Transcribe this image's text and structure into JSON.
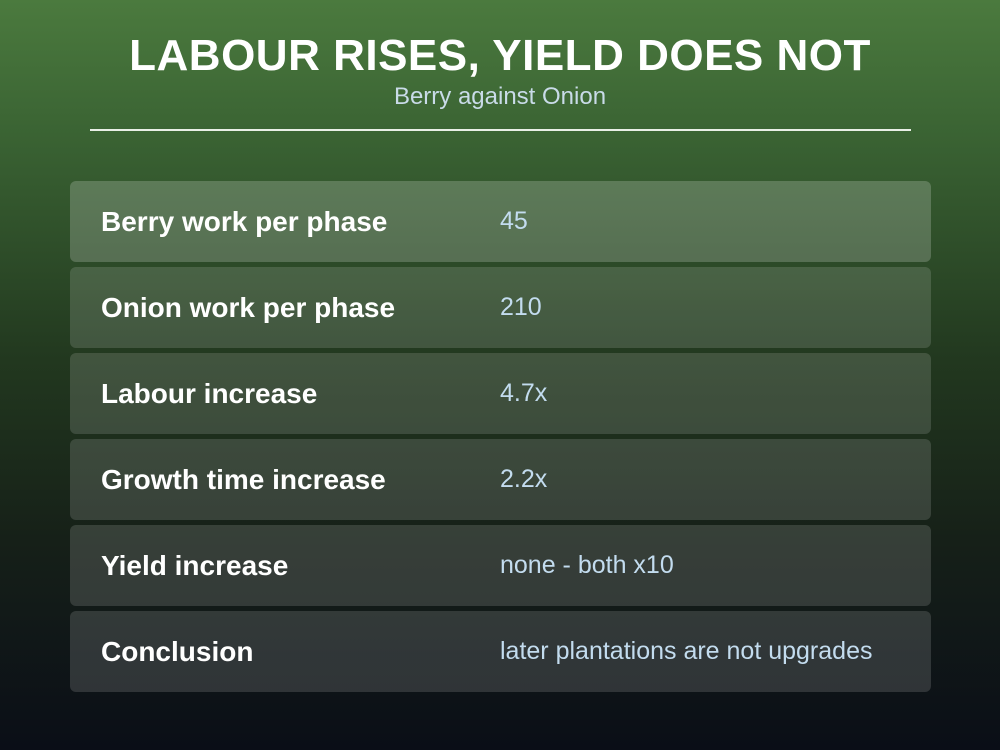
{
  "header": {
    "title": "LABOUR RISES, YIELD DOES NOT",
    "subtitle": "Berry against Onion"
  },
  "rows": [
    {
      "label": "Berry work per phase",
      "value": "45"
    },
    {
      "label": "Onion work per phase",
      "value": "210"
    },
    {
      "label": "Labour increase",
      "value": "4.7x"
    },
    {
      "label": "Growth time increase",
      "value": "2.2x"
    },
    {
      "label": "Yield increase",
      "value": "none - both x10"
    },
    {
      "label": "Conclusion",
      "value": "later plantations are not upgrades"
    }
  ]
}
